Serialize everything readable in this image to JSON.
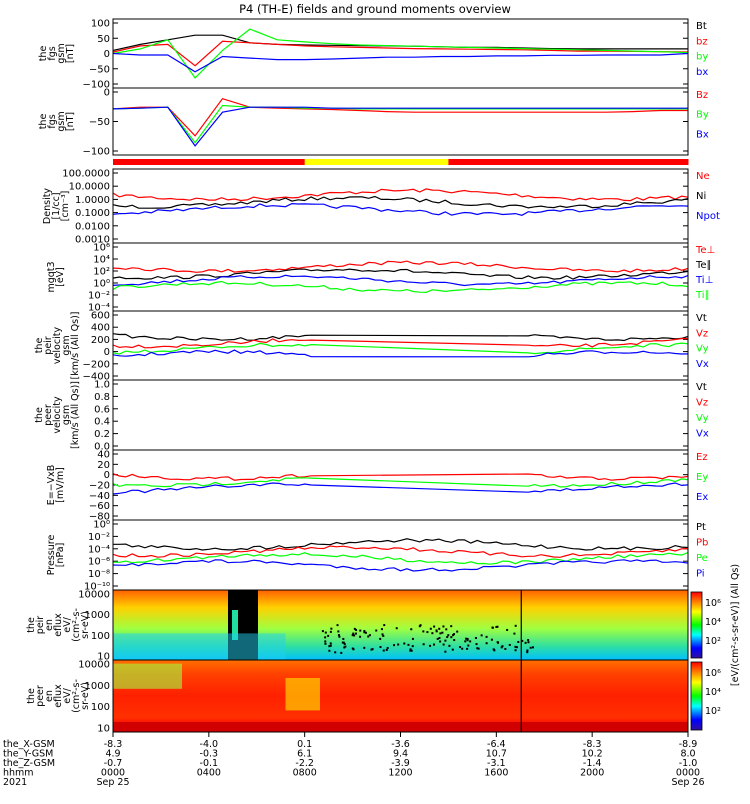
{
  "title": "P4 (TH-E) fields and ground moments overview",
  "colors": {
    "black": "#000000",
    "red": "#ff0000",
    "green": "#00ff00",
    "blue": "#0000ff",
    "yellow": "#ffff00"
  },
  "panels": [
    {
      "id": "fgs-gsm",
      "type": "line",
      "ylabel": [
        "the",
        "fgs",
        "gsm",
        "[nT]"
      ],
      "ticks": [
        "100",
        "50",
        "0",
        "−50",
        "−100"
      ],
      "ylim": [
        -100,
        100
      ],
      "series": [
        {
          "name": "Bt",
          "color": "#000000",
          "values": [
            10,
            30,
            45,
            60,
            60,
            35,
            30,
            28,
            27,
            26,
            25,
            24,
            22,
            20,
            20,
            18,
            16,
            15,
            15,
            15,
            15,
            15
          ]
        },
        {
          "name": "bz",
          "color": "#ff0000",
          "values": [
            5,
            25,
            30,
            -40,
            40,
            35,
            30,
            25,
            22,
            20,
            18,
            16,
            15,
            14,
            13,
            12,
            10,
            8,
            8,
            7,
            6,
            5
          ]
        },
        {
          "name": "by",
          "color": "#00ff00",
          "values": [
            0,
            15,
            45,
            -80,
            10,
            80,
            45,
            38,
            32,
            28,
            26,
            24,
            22,
            20,
            18,
            16,
            14,
            12,
            10,
            8,
            6,
            3
          ]
        },
        {
          "name": "bx",
          "color": "#0000ff",
          "values": [
            0,
            -5,
            -5,
            -60,
            -10,
            -15,
            -20,
            -20,
            -18,
            -15,
            -12,
            -12,
            -10,
            -10,
            -8,
            -8,
            -6,
            -6,
            -5,
            -5,
            -5,
            0
          ]
        }
      ]
    },
    {
      "id": "fgs-gsm-zoom",
      "type": "line",
      "ylabel": [
        "the",
        "fgs",
        "gsm",
        "[nT]"
      ],
      "ticks": [
        "0",
        "−50",
        "−100"
      ],
      "ylim": [
        -125,
        50
      ],
      "series": [
        {
          "name": "Bz",
          "color": "#ff0000",
          "values": [
            0,
            5,
            5,
            -80,
            30,
            5,
            2,
            0,
            -2,
            -5,
            -8,
            -10,
            -10,
            -10,
            -10,
            -10,
            -10,
            -10,
            -10,
            -8,
            -5,
            -5
          ]
        },
        {
          "name": "By",
          "color": "#00ff00",
          "values": [
            0,
            2,
            5,
            -100,
            10,
            5,
            5,
            2,
            2,
            0,
            0,
            0,
            0,
            0,
            0,
            0,
            0,
            0,
            0,
            0,
            0,
            0
          ]
        },
        {
          "name": "Bx",
          "color": "#0000ff",
          "values": [
            0,
            2,
            5,
            -110,
            -10,
            5,
            5,
            5,
            2,
            2,
            2,
            2,
            2,
            2,
            2,
            2,
            2,
            2,
            2,
            2,
            2,
            2
          ]
        }
      ]
    },
    {
      "id": "density",
      "type": "line",
      "ylabel": [
        "Density",
        "[1/cc]",
        "[cm⁻³]"
      ],
      "ticks": [
        "100.0000",
        "10.0000",
        "1.0000",
        "0.1000",
        "0.0100",
        "0.0010"
      ],
      "log": true,
      "series": [
        {
          "name": "Ne",
          "color": "#ff0000"
        },
        {
          "name": "Ni",
          "color": "#000000"
        },
        {
          "name": "Npot",
          "color": "#0000ff"
        }
      ]
    },
    {
      "id": "temperature",
      "type": "line",
      "ylabel": [
        "mgqt3",
        "[eV]"
      ],
      "ticks": [
        "10⁶",
        "10⁴",
        "10²",
        "10⁰",
        "10⁻²",
        "10⁻⁴"
      ],
      "log": true,
      "series": [
        {
          "name": "Te⊥",
          "color": "#ff0000"
        },
        {
          "name": "Te∥",
          "color": "#000000"
        },
        {
          "name": "Ti⊥",
          "color": "#0000ff"
        },
        {
          "name": "Ti∥",
          "color": "#00ff00"
        }
      ]
    },
    {
      "id": "peir-velocity",
      "type": "line",
      "ylabel": [
        "the",
        "peir",
        "velocity",
        "gsm",
        "[km/s (All Qs)]"
      ],
      "ticks": [
        "600",
        "400",
        "200",
        "0",
        "−200",
        "−400"
      ],
      "ylim": [
        -400,
        600
      ],
      "series": [
        {
          "name": "Vt",
          "color": "#000000"
        },
        {
          "name": "Vz",
          "color": "#ff0000"
        },
        {
          "name": "Vy",
          "color": "#00ff00"
        },
        {
          "name": "Vx",
          "color": "#0000ff"
        }
      ]
    },
    {
      "id": "peer-velocity",
      "type": "line",
      "ylabel": [
        "the",
        "peer",
        "velocity",
        "gsm",
        "[km/s (All Qs)]"
      ],
      "ticks": [
        "1.0",
        "0.8",
        "0.6",
        "0.4",
        "0.2",
        "0.0"
      ],
      "ylim": [
        0,
        1
      ],
      "series": [
        {
          "name": "Vt",
          "color": "#000000"
        },
        {
          "name": "Vz",
          "color": "#ff0000"
        },
        {
          "name": "Vy",
          "color": "#00ff00"
        },
        {
          "name": "Vx",
          "color": "#0000ff"
        }
      ]
    },
    {
      "id": "efield",
      "type": "line",
      "ylabel": [
        "E=−VxB",
        "[mV/m]"
      ],
      "ticks": [
        "40",
        "20",
        "0",
        "−20",
        "−40",
        "−60",
        "−80"
      ],
      "ylim": [
        -80,
        40
      ],
      "series": [
        {
          "name": "Ez",
          "color": "#ff0000"
        },
        {
          "name": "Ey",
          "color": "#00ff00"
        },
        {
          "name": "Ex",
          "color": "#0000ff"
        }
      ]
    },
    {
      "id": "pressure",
      "type": "line",
      "ylabel": [
        "Pressure",
        "[nPa]"
      ],
      "ticks": [
        "10⁰",
        "10⁻²",
        "10⁻⁴",
        "10⁻⁶",
        "10⁻⁸",
        "10⁻¹⁰"
      ],
      "log": true,
      "series": [
        {
          "name": "Pt",
          "color": "#000000"
        },
        {
          "name": "Pb",
          "color": "#ff0000"
        },
        {
          "name": "Pe",
          "color": "#00ff00"
        },
        {
          "name": "Pi",
          "color": "#0000ff"
        }
      ]
    },
    {
      "id": "peir-spectrogram",
      "type": "heatmap",
      "ylabel": [
        "the",
        "peir",
        "en",
        "eflux",
        "eV/",
        "(cm²-s-",
        "sr-eV)"
      ],
      "ticks": [
        "10000",
        "1000",
        "100",
        "10"
      ]
    },
    {
      "id": "peer-spectrogram",
      "type": "heatmap",
      "ylabel": [
        "the",
        "peer",
        "en",
        "eflux",
        "eV/",
        "(cm²-s-",
        "sr-eV)"
      ],
      "ticks": [
        "10000",
        "1000",
        "100",
        "10"
      ]
    }
  ],
  "colorbar": {
    "label": "[eV/(cm²-s-sr-eV)] (All Qs)",
    "ticks": [
      "10⁶",
      "10⁴",
      "10²",
      "10⁶",
      "10⁴",
      "10²"
    ]
  },
  "mode_bar": [
    "red",
    "red",
    "red",
    "red",
    "yellow",
    "yellow",
    "yellow",
    "red",
    "red",
    "red",
    "red",
    "red"
  ],
  "x_axis": {
    "row_labels": [
      "the_X-GSM",
      "the_Y-GSM",
      "the_Z-GSM",
      "hhmm",
      "2021"
    ],
    "columns": [
      {
        "x": "-8.3",
        "y": "4.9",
        "z": "-0.7",
        "hhmm": "0000",
        "date": "Sep 25"
      },
      {
        "x": "-4.0",
        "y": "-0.3",
        "z": "-0.1",
        "hhmm": "0400",
        "date": ""
      },
      {
        "x": "0.1",
        "y": "6.1",
        "z": "-2.2",
        "hhmm": "0800",
        "date": ""
      },
      {
        "x": "-3.6",
        "y": "9.4",
        "z": "-3.9",
        "hhmm": "1200",
        "date": ""
      },
      {
        "x": "-6.4",
        "y": "10.7",
        "z": "-3.1",
        "hhmm": "1600",
        "date": ""
      },
      {
        "x": "-8.3",
        "y": "10.2",
        "z": "-1.4",
        "hhmm": "2000",
        "date": ""
      },
      {
        "x": "-8.9",
        "y": "8.0",
        "z": "-1.0",
        "hhmm": "0000",
        "date": "Sep 26"
      }
    ]
  }
}
